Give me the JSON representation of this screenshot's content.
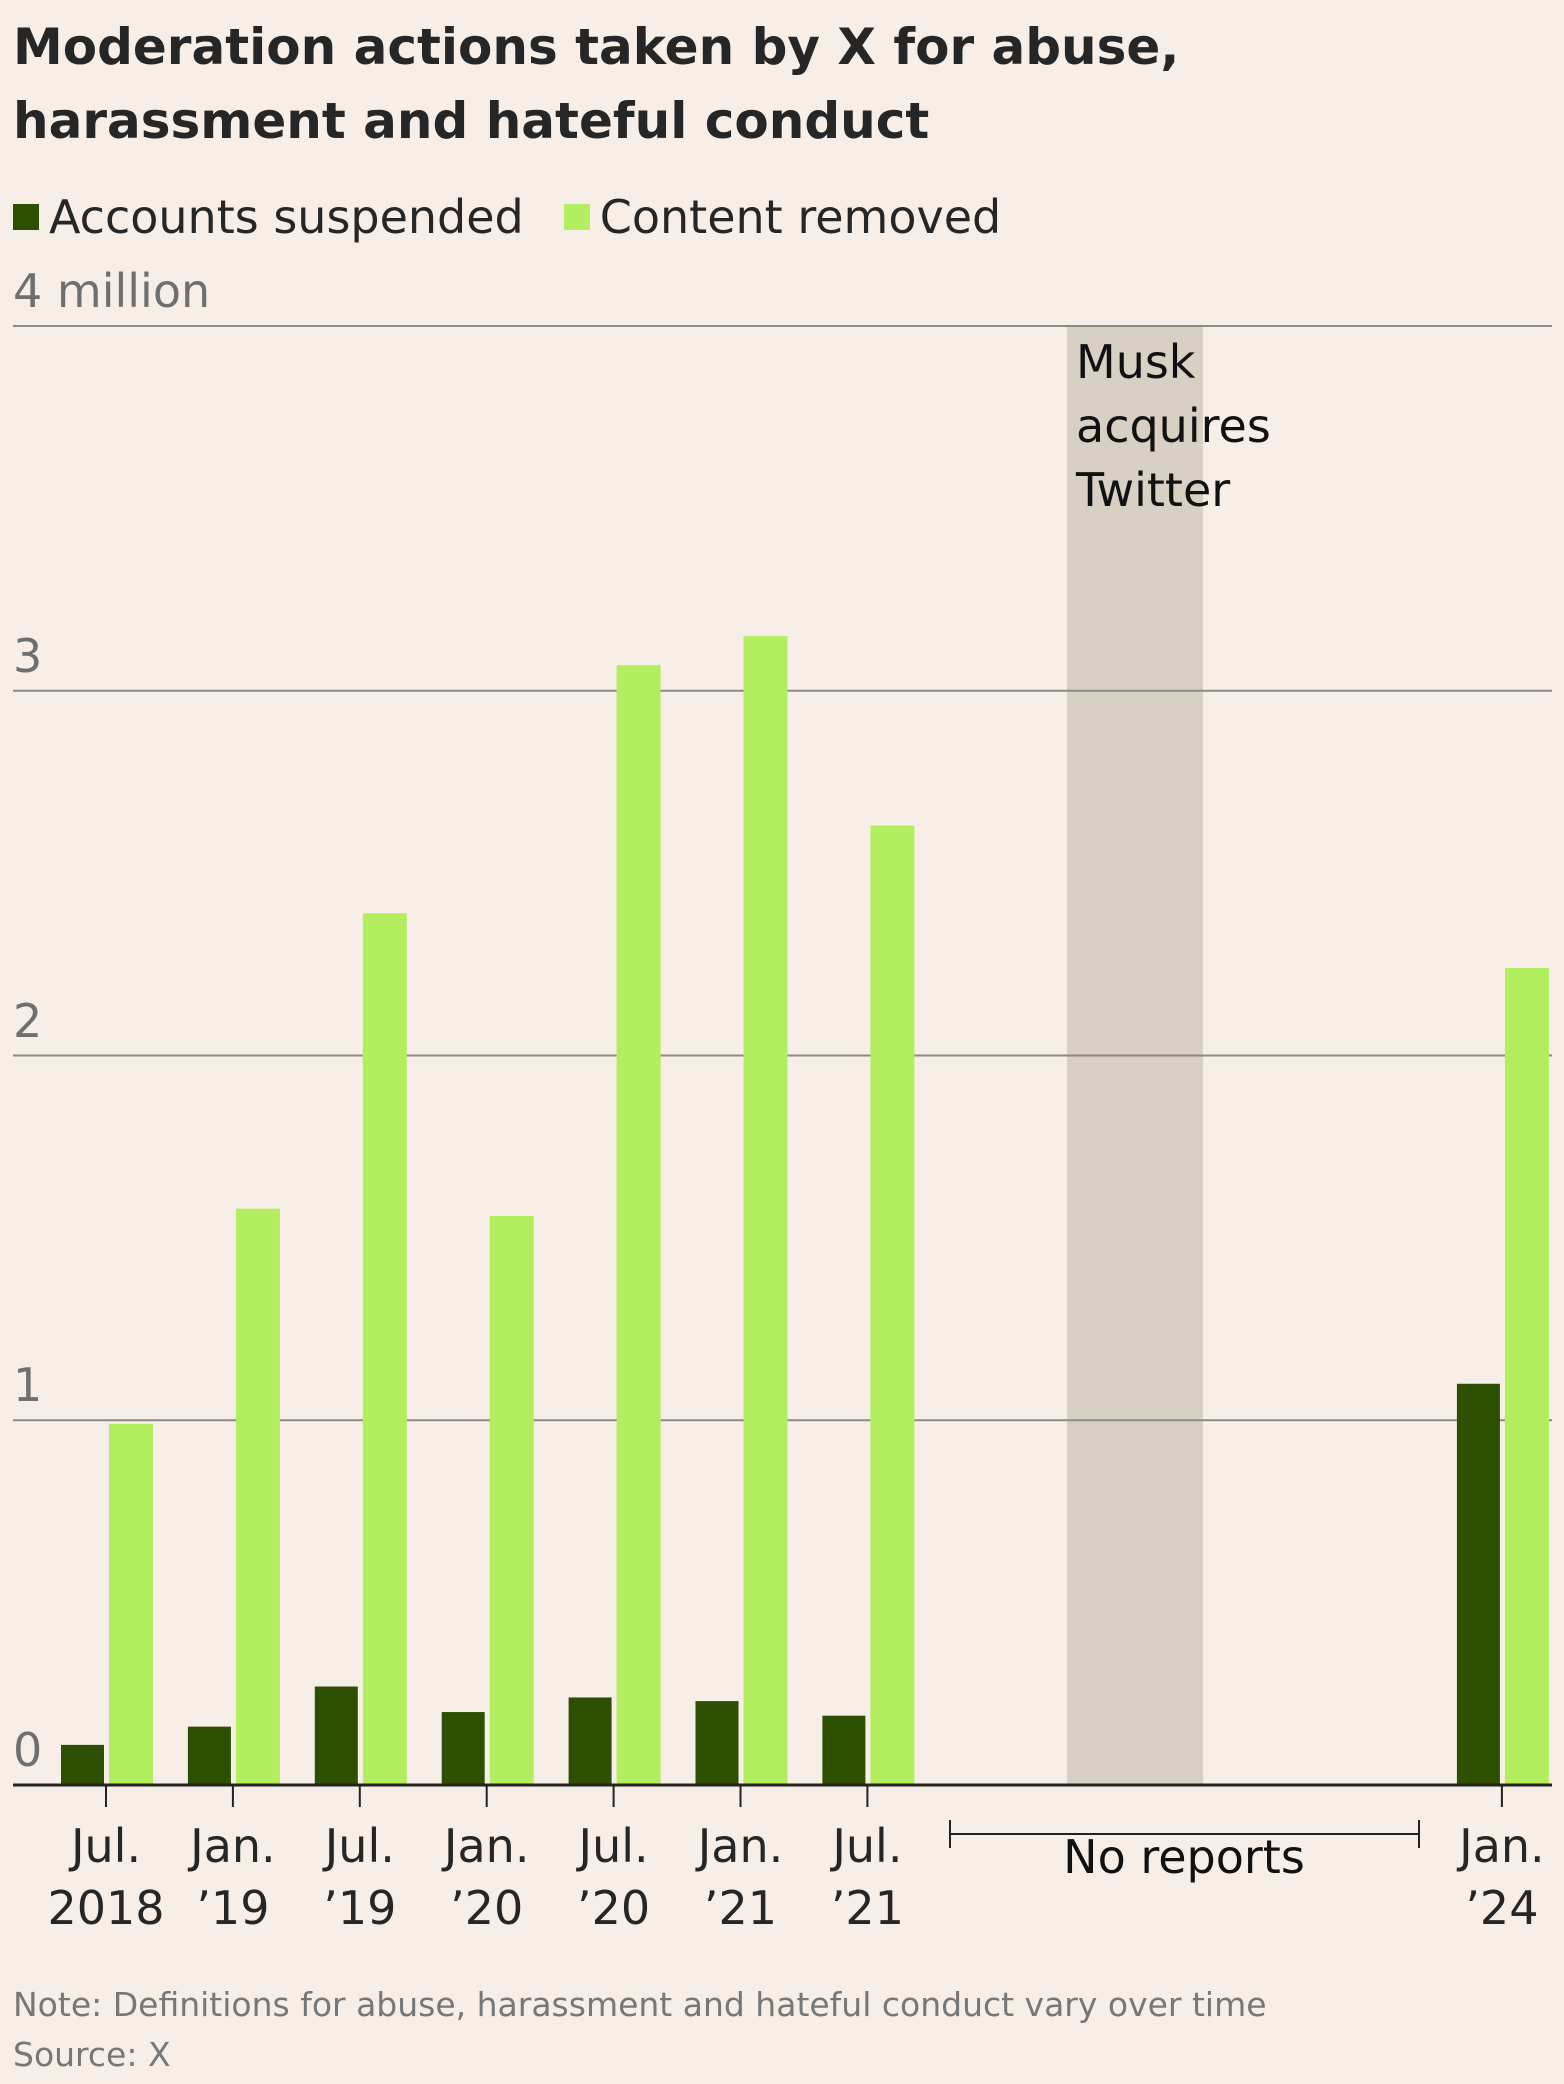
{
  "chart_data": {
    "type": "bar",
    "title": "Moderation actions taken by X for abuse,\nharassment and hateful conduct",
    "categories": [
      "Jul.\n2018",
      "Jan.\n’19",
      "Jul.\n’19",
      "Jan.\n’20",
      "Jul.\n’20",
      "Jan.\n’21",
      "Jul.\n’21",
      null,
      null,
      null,
      null,
      "Jan.\n’24"
    ],
    "series": [
      {
        "name": "Accounts suspended",
        "color": "#2d4f00",
        "values": [
          0.11,
          0.16,
          0.27,
          0.2,
          0.24,
          0.23,
          0.19,
          null,
          null,
          null,
          null,
          1.1
        ]
      },
      {
        "name": "Content removed",
        "color": "#b2ee5e",
        "values": [
          0.99,
          1.58,
          2.39,
          1.56,
          3.07,
          3.15,
          2.63,
          null,
          null,
          null,
          null,
          2.24
        ]
      }
    ],
    "ylim": [
      0,
      4
    ],
    "yticks": [
      0,
      1,
      2,
      3,
      {
        "value": 4,
        "label": "4 million"
      }
    ],
    "grid": true,
    "annotations": [
      "Musk\nacquires\nTwitter",
      "No reports"
    ],
    "notes": [
      "Note: Definitions for abuse, harassment and hateful conduct vary over time",
      "Source: X"
    ]
  }
}
